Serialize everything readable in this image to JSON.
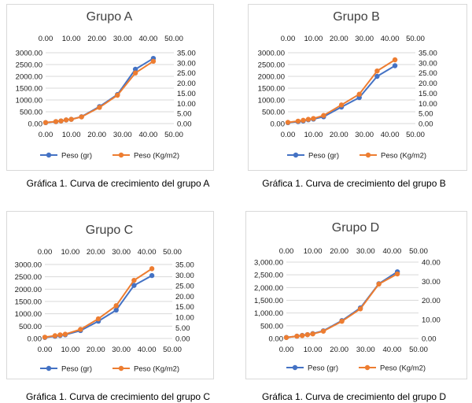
{
  "colors": {
    "series1": "#4472c4",
    "series2": "#ed7d31",
    "grid": "#d9d9d9",
    "border": "#d9d9d9"
  },
  "chart_data": [
    {
      "type": "line",
      "title": "Grupo A",
      "caption": "Gráfica 1. Curva de crecimiento del grupo A",
      "x": [
        0,
        4,
        6,
        8,
        10,
        14,
        21,
        28,
        35,
        42
      ],
      "xlim": [
        0,
        50
      ],
      "x_ticks": [
        "0.00",
        "10.00",
        "20.00",
        "30.00",
        "40.00",
        "50.00"
      ],
      "y_left_lim": [
        0,
        3000
      ],
      "y_left_ticks": [
        "0.00",
        "500.00",
        "1000.00",
        "1500.00",
        "2000.00",
        "2500.00",
        "3000.00"
      ],
      "y_right_lim": [
        0,
        35
      ],
      "y_right_ticks": [
        "0.00",
        "5.00",
        "10.00",
        "15.00",
        "20.00",
        "25.00",
        "30.00",
        "35.00"
      ],
      "series": [
        {
          "name": "Peso (gr)",
          "axis": "left",
          "values": [
            40,
            80,
            110,
            150,
            180,
            290,
            720,
            1230,
            2300,
            2760
          ]
        },
        {
          "name": "Peso (Kg/m2)",
          "axis": "right",
          "values": [
            0.5,
            1.0,
            1.3,
            1.8,
            2.1,
            3.3,
            8.0,
            14.0,
            25.0,
            30.8
          ]
        }
      ]
    },
    {
      "type": "line",
      "title": "Grupo B",
      "caption": "Gráfica 1. Curva de crecimiento del grupo B",
      "x": [
        0,
        4,
        6,
        8,
        10,
        14,
        21,
        28,
        35,
        42
      ],
      "xlim": [
        0,
        50
      ],
      "x_ticks": [
        "0.00",
        "10.00",
        "20.00",
        "30.00",
        "40.00",
        "50.00"
      ],
      "y_left_lim": [
        0,
        3000
      ],
      "y_left_ticks": [
        "0.00",
        "500.00",
        "1000.00",
        "1500.00",
        "2000.00",
        "2500.00",
        "3000.00"
      ],
      "y_right_lim": [
        0,
        35
      ],
      "y_right_ticks": [
        "0.00",
        "5.00",
        "10.00",
        "15.00",
        "20.00",
        "25.00",
        "30.00",
        "35.00"
      ],
      "series": [
        {
          "name": "Peso (gr)",
          "axis": "left",
          "values": [
            40,
            80,
            110,
            160,
            190,
            290,
            700,
            1100,
            2000,
            2450
          ]
        },
        {
          "name": "Peso (Kg/m2)",
          "axis": "right",
          "values": [
            0.6,
            1.2,
            1.6,
            2.1,
            2.5,
            4.0,
            9.2,
            14.5,
            26.0,
            31.5
          ]
        }
      ]
    },
    {
      "type": "line",
      "title": "Grupo C",
      "caption": "Gráfica 1. Curva de crecimiento del grupo C",
      "x": [
        0,
        4,
        6,
        8,
        14,
        21,
        28,
        35,
        42
      ],
      "xlim": [
        0,
        50
      ],
      "x_ticks": [
        "0.00",
        "10.00",
        "20.00",
        "30.00",
        "40.00",
        "50.00"
      ],
      "y_left_lim": [
        0,
        3000
      ],
      "y_left_ticks": [
        "0.00",
        "500.00",
        "1000.00",
        "1500.00",
        "2000.00",
        "2500.00",
        "3000.00"
      ],
      "y_right_lim": [
        0,
        35
      ],
      "y_right_ticks": [
        "0.00",
        "5.00",
        "10.00",
        "15.00",
        "20.00",
        "25.00",
        "30.00",
        "35.00"
      ],
      "series": [
        {
          "name": "Peso (gr)",
          "axis": "left",
          "values": [
            40,
            90,
            120,
            150,
            320,
            700,
            1150,
            2150,
            2550
          ]
        },
        {
          "name": "Peso (Kg/m2)",
          "axis": "right",
          "values": [
            0.6,
            1.3,
            1.7,
            2.0,
            4.3,
            9.3,
            15.5,
            27.5,
            33.0
          ]
        }
      ]
    },
    {
      "type": "line",
      "title": "Grupo D",
      "caption": "Gráfica 1. Curva de crecimiento del grupo D",
      "x": [
        0,
        4,
        6,
        8,
        10,
        14,
        21,
        28,
        35,
        42
      ],
      "xlim": [
        0,
        50
      ],
      "x_ticks": [
        "0.00",
        "10.00",
        "20.00",
        "30.00",
        "40.00",
        "50.00"
      ],
      "y_left_lim": [
        0,
        3000
      ],
      "y_left_ticks": [
        "0.00",
        "500.00",
        "1,000.00",
        "1,500.00",
        "2,000.00",
        "2,500.00",
        "3,000.00"
      ],
      "y_right_lim": [
        0,
        40
      ],
      "y_right_ticks": [
        "0.00",
        "10.00",
        "20.00",
        "30.00",
        "40.00"
      ],
      "series": [
        {
          "name": "Peso (gr)",
          "axis": "left",
          "values": [
            40,
            90,
            120,
            150,
            190,
            300,
            700,
            1200,
            2150,
            2620
          ]
        },
        {
          "name": "Peso (Kg/m2)",
          "axis": "right",
          "values": [
            0.5,
            1.2,
            1.5,
            2.0,
            2.4,
            3.8,
            9.0,
            15.5,
            28.5,
            33.8
          ]
        }
      ]
    }
  ]
}
